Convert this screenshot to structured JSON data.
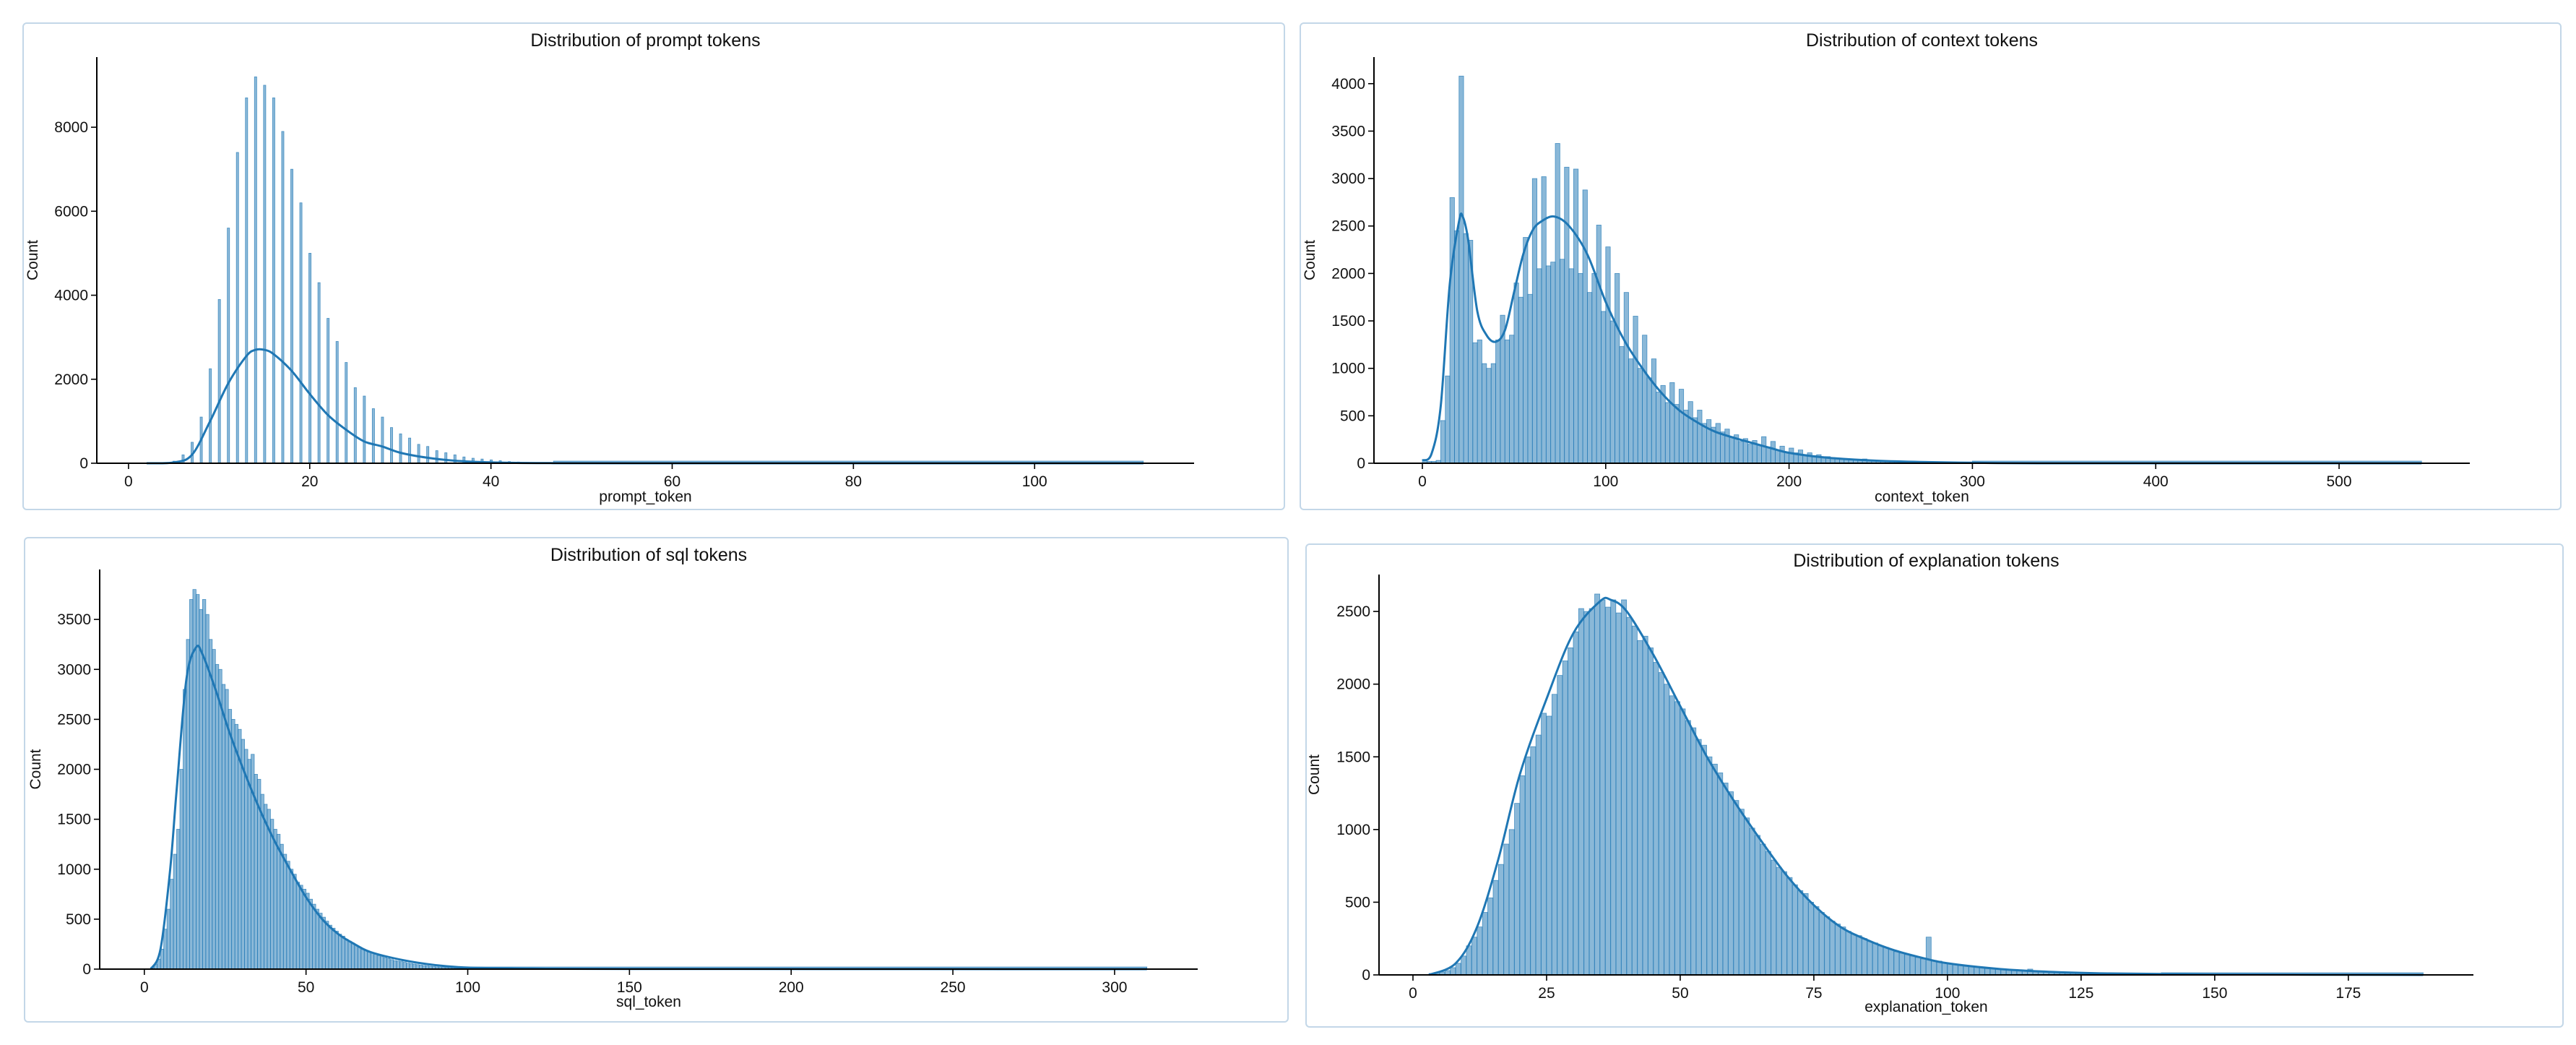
{
  "colors": {
    "bar": "#1f77b4",
    "kde": "#1f77b4",
    "panel_border": "#c3d7e8"
  },
  "chart_data": [
    {
      "type": "histogram",
      "title": "Distribution of prompt tokens",
      "xlabel": "prompt_token",
      "ylabel": "Count",
      "xlim": [
        -3.5,
        117.6
      ],
      "ylim": [
        0,
        9670
      ],
      "x_max": 112,
      "xticks": [
        0,
        20,
        40,
        60,
        80,
        100
      ],
      "yticks": [
        0,
        2000,
        4000,
        6000,
        8000
      ],
      "grid": false,
      "bin_start": 4.9,
      "bin_width": 0.25,
      "bin_step": 1,
      "counts": [
        50,
        200,
        500,
        1100,
        2250,
        3900,
        5600,
        7400,
        8700,
        9200,
        9000,
        8700,
        7900,
        7000,
        6200,
        5000,
        4300,
        3450,
        2900,
        2400,
        1800,
        1600,
        1300,
        1100,
        850,
        700,
        600,
        450,
        400,
        300,
        250,
        200,
        150,
        120,
        100,
        80,
        60,
        40,
        30,
        20,
        15,
        10
      ],
      "kde": [
        [
          2,
          0
        ],
        [
          5,
          20
        ],
        [
          7,
          200
        ],
        [
          9,
          1000
        ],
        [
          11,
          1900
        ],
        [
          13,
          2550
        ],
        [
          14,
          2700
        ],
        [
          15,
          2700
        ],
        [
          16,
          2600
        ],
        [
          18,
          2200
        ],
        [
          20,
          1650
        ],
        [
          22,
          1150
        ],
        [
          24,
          800
        ],
        [
          26,
          520
        ],
        [
          28,
          400
        ],
        [
          30,
          250
        ],
        [
          33,
          130
        ],
        [
          36,
          60
        ],
        [
          40,
          20
        ],
        [
          45,
          5
        ],
        [
          60,
          0
        ],
        [
          112,
          0
        ]
      ]
    },
    {
      "type": "histogram",
      "title": "Distribution of context tokens",
      "xlabel": "context_token",
      "ylabel": "Count",
      "xlim": [
        -26.4,
        571.3
      ],
      "ylim": [
        0,
        4280
      ],
      "x_max": 545,
      "xticks": [
        0,
        100,
        200,
        300,
        400,
        500
      ],
      "yticks": [
        0,
        500,
        1000,
        1500,
        2000,
        2500,
        3000,
        3500,
        4000
      ],
      "grid": false,
      "bin_start": 0,
      "bin_width": 2.5,
      "bin_step": 2.5,
      "counts": [
        30,
        20,
        20,
        30,
        450,
        920,
        2800,
        2450,
        4080,
        2420,
        2350,
        1270,
        1300,
        1050,
        1000,
        1050,
        1300,
        1560,
        1300,
        1350,
        1900,
        1750,
        2380,
        1780,
        3000,
        2050,
        3020,
        2080,
        2120,
        3370,
        2150,
        3120,
        2050,
        3100,
        2000,
        2880,
        1800,
        2000,
        2510,
        1600,
        2280,
        1500,
        2000,
        1230,
        1800,
        1100,
        1550,
        1000,
        1350,
        900,
        1100,
        750,
        820,
        640,
        850,
        620,
        780,
        560,
        650,
        480,
        560,
        420,
        460,
        380,
        420,
        330,
        360,
        280,
        300,
        230,
        260,
        200,
        240,
        190,
        280,
        170,
        230,
        140,
        180,
        120,
        160,
        110,
        140,
        90,
        110,
        80,
        90,
        70,
        70,
        60,
        55,
        45,
        50,
        35,
        40,
        30,
        45,
        25,
        25,
        20,
        20,
        18,
        16,
        14,
        12,
        11,
        10,
        9,
        8,
        7,
        6,
        5,
        5,
        4,
        4,
        3,
        3,
        2,
        2,
        1
      ],
      "kde": [
        [
          0,
          30
        ],
        [
          5,
          100
        ],
        [
          10,
          600
        ],
        [
          15,
          1900
        ],
        [
          20,
          2550
        ],
        [
          22,
          2600
        ],
        [
          25,
          2350
        ],
        [
          30,
          1600
        ],
        [
          35,
          1350
        ],
        [
          40,
          1280
        ],
        [
          45,
          1400
        ],
        [
          50,
          1800
        ],
        [
          55,
          2200
        ],
        [
          60,
          2450
        ],
        [
          65,
          2550
        ],
        [
          72,
          2600
        ],
        [
          80,
          2500
        ],
        [
          90,
          2200
        ],
        [
          100,
          1700
        ],
        [
          110,
          1300
        ],
        [
          120,
          1000
        ],
        [
          130,
          750
        ],
        [
          140,
          560
        ],
        [
          150,
          430
        ],
        [
          160,
          330
        ],
        [
          175,
          240
        ],
        [
          190,
          160
        ],
        [
          200,
          110
        ],
        [
          220,
          60
        ],
        [
          250,
          25
        ],
        [
          300,
          5
        ],
        [
          350,
          0
        ],
        [
          545,
          0
        ]
      ]
    },
    {
      "type": "histogram",
      "title": "Distribution of sql tokens",
      "xlabel": "sql_token",
      "ylabel": "Count",
      "xlim": [
        -13.8,
        325.7
      ],
      "ylim": [
        0,
        4000
      ],
      "x_max": 310,
      "xticks": [
        0,
        50,
        100,
        150,
        200,
        250,
        300
      ],
      "yticks": [
        0,
        500,
        1000,
        1500,
        2000,
        2500,
        3000,
        3500
      ],
      "grid": false,
      "bin_start": 2,
      "bin_width": 1,
      "bin_step": 1,
      "counts": [
        20,
        50,
        100,
        200,
        400,
        600,
        900,
        1150,
        1400,
        2000,
        2800,
        3300,
        3700,
        3800,
        3750,
        3600,
        3700,
        3550,
        3300,
        3200,
        3050,
        3000,
        2850,
        2800,
        2600,
        2500,
        2450,
        2400,
        2300,
        2200,
        2100,
        2150,
        1950,
        1900,
        1750,
        1650,
        1600,
        1500,
        1400,
        1350,
        1250,
        1150,
        1080,
        1000,
        950,
        870,
        840,
        800,
        760,
        700,
        650,
        600,
        560,
        520,
        480,
        440,
        410,
        380,
        350,
        330,
        300,
        280,
        260,
        240,
        220,
        200,
        185,
        170,
        160,
        150,
        135,
        125,
        115,
        105,
        95,
        85,
        80,
        75,
        68,
        60,
        55,
        50,
        45,
        40,
        36,
        32,
        28,
        25,
        22,
        20,
        18,
        16,
        14,
        12,
        10,
        9,
        8,
        7,
        6
      ],
      "kde": [
        [
          2,
          0
        ],
        [
          5,
          200
        ],
        [
          8,
          1000
        ],
        [
          10,
          1800
        ],
        [
          13,
          2900
        ],
        [
          16,
          3220
        ],
        [
          18,
          3150
        ],
        [
          22,
          2800
        ],
        [
          26,
          2400
        ],
        [
          30,
          2050
        ],
        [
          35,
          1650
        ],
        [
          40,
          1300
        ],
        [
          45,
          1000
        ],
        [
          50,
          720
        ],
        [
          55,
          500
        ],
        [
          60,
          350
        ],
        [
          65,
          250
        ],
        [
          70,
          170
        ],
        [
          80,
          90
        ],
        [
          90,
          40
        ],
        [
          100,
          15
        ],
        [
          120,
          5
        ],
        [
          150,
          2
        ],
        [
          310,
          0
        ]
      ]
    },
    {
      "type": "histogram",
      "title": "Distribution of explanation tokens",
      "xlabel": "explanation_token",
      "ylabel": "Count",
      "xlim": [
        -6.35,
        198.4
      ],
      "ylim": [
        0,
        2754
      ],
      "x_max": 189,
      "xticks": [
        0,
        25,
        50,
        75,
        100,
        125,
        150,
        175
      ],
      "yticks": [
        0,
        500,
        1000,
        1500,
        2000,
        2500
      ],
      "grid": false,
      "bin_start": 3,
      "bin_width": 0.95,
      "bin_step": 1,
      "counts": [
        10,
        15,
        20,
        30,
        50,
        80,
        130,
        200,
        260,
        330,
        430,
        530,
        650,
        760,
        900,
        1000,
        1180,
        1370,
        1500,
        1570,
        1650,
        1800,
        1780,
        1930,
        2060,
        2160,
        2250,
        2360,
        2520,
        2500,
        2520,
        2620,
        2580,
        2530,
        2580,
        2490,
        2580,
        2460,
        2400,
        2300,
        2330,
        2250,
        2150,
        2080,
        2000,
        1920,
        1880,
        1830,
        1750,
        1700,
        1620,
        1580,
        1500,
        1450,
        1390,
        1320,
        1260,
        1200,
        1140,
        1080,
        1010,
        960,
        900,
        850,
        790,
        740,
        710,
        670,
        620,
        580,
        560,
        500,
        470,
        430,
        400,
        370,
        350,
        330,
        300,
        280,
        270,
        250,
        230,
        220,
        200,
        190,
        175,
        160,
        150,
        140,
        130,
        120,
        110,
        260,
        100,
        95,
        85,
        80,
        75,
        70,
        65,
        60,
        55,
        50,
        46,
        42,
        40,
        36,
        33,
        30,
        28,
        26,
        40,
        22,
        20,
        18,
        16,
        14,
        12,
        11,
        10,
        9,
        8,
        7,
        7,
        6,
        6,
        5,
        5,
        4,
        4,
        3,
        3,
        3,
        2,
        2,
        2
      ],
      "kde": [
        [
          3,
          0
        ],
        [
          8,
          80
        ],
        [
          12,
          330
        ],
        [
          16,
          800
        ],
        [
          20,
          1380
        ],
        [
          25,
          1900
        ],
        [
          30,
          2350
        ],
        [
          35,
          2570
        ],
        [
          37,
          2580
        ],
        [
          40,
          2500
        ],
        [
          45,
          2200
        ],
        [
          50,
          1850
        ],
        [
          55,
          1500
        ],
        [
          60,
          1200
        ],
        [
          65,
          930
        ],
        [
          70,
          680
        ],
        [
          75,
          480
        ],
        [
          80,
          330
        ],
        [
          85,
          240
        ],
        [
          90,
          170
        ],
        [
          95,
          120
        ],
        [
          100,
          80
        ],
        [
          110,
          40
        ],
        [
          120,
          20
        ],
        [
          130,
          10
        ],
        [
          150,
          3
        ],
        [
          189,
          0
        ]
      ]
    }
  ]
}
